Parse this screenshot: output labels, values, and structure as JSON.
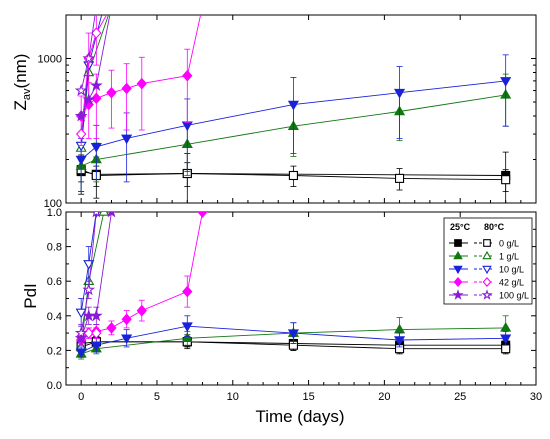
{
  "chart_data": [
    {
      "panel": "top",
      "type": "line",
      "ylabel_main": "Z",
      "ylabel_sub": "av",
      "ylabel_unit": "(nm)",
      "yscale": "log",
      "ylim": [
        100,
        2000
      ],
      "yticks": [
        100,
        1000
      ],
      "xlim": [
        -1,
        30
      ],
      "series": [
        {
          "key": "c0_25",
          "x": [
            0,
            1,
            7,
            28
          ],
          "y": [
            165,
            158,
            160,
            155
          ],
          "err": [
            50,
            50,
            60,
            70
          ]
        },
        {
          "key": "c0_80",
          "x": [
            0,
            1,
            7,
            14,
            21,
            28
          ],
          "y": [
            170,
            155,
            160,
            155,
            148,
            145
          ],
          "err": [
            30,
            25,
            30,
            25,
            25,
            25
          ]
        },
        {
          "key": "c1_25",
          "x": [
            0,
            1,
            7,
            14,
            21,
            28
          ],
          "y": [
            180,
            200,
            255,
            340,
            430,
            560
          ],
          "err": [
            60,
            60,
            100,
            130,
            160,
            220
          ]
        },
        {
          "key": "c1_80",
          "x": [
            0,
            0.5,
            2
          ],
          "y": [
            240,
            800,
            2300
          ],
          "err": [
            0,
            0,
            0
          ]
        },
        {
          "key": "c10_25",
          "x": [
            0,
            1,
            3,
            7,
            14,
            21,
            28
          ],
          "y": [
            200,
            245,
            280,
            345,
            480,
            580,
            700
          ],
          "err": [
            80,
            100,
            140,
            180,
            260,
            300,
            360
          ]
        },
        {
          "key": "c10_80",
          "x": [
            0,
            0.5,
            1.5
          ],
          "y": [
            250,
            900,
            2300
          ],
          "err": [
            0,
            0,
            0
          ]
        },
        {
          "key": "c42_25",
          "x": [
            0,
            0.5,
            1,
            2,
            3,
            4,
            7,
            8
          ],
          "y": [
            400,
            480,
            530,
            580,
            620,
            670,
            760,
            2300
          ],
          "err": [
            150,
            200,
            250,
            250,
            300,
            350,
            400,
            0
          ]
        },
        {
          "key": "c42_80",
          "x": [
            0,
            0.5,
            1,
            2
          ],
          "y": [
            300,
            1000,
            1500,
            2300
          ],
          "err": [
            0,
            500,
            600,
            0
          ]
        },
        {
          "key": "c100_25",
          "x": [
            0,
            0.5,
            1,
            2
          ],
          "y": [
            400,
            520,
            650,
            2300
          ],
          "err": [
            0,
            0,
            0,
            0
          ]
        },
        {
          "key": "c100_80",
          "x": [
            0,
            0.5,
            1
          ],
          "y": [
            600,
            1000,
            2300
          ],
          "err": [
            0,
            0,
            0
          ]
        }
      ]
    },
    {
      "panel": "bottom",
      "type": "line",
      "ylabel": "PdI",
      "ylim": [
        0.0,
        1.0
      ],
      "yticks": [
        0.0,
        0.2,
        0.4,
        0.6,
        0.8,
        1.0
      ],
      "xlim": [
        -1,
        30
      ],
      "xticks": [
        0,
        5,
        10,
        15,
        20,
        25,
        30
      ],
      "xlabel": "Time (days)",
      "series": [
        {
          "key": "c0_25",
          "x": [
            0,
            1,
            7,
            14,
            21,
            28
          ],
          "y": [
            0.24,
            0.25,
            0.25,
            0.24,
            0.23,
            0.23
          ],
          "err": [
            0.04,
            0.03,
            0.04,
            0.04,
            0.04,
            0.04
          ]
        },
        {
          "key": "c0_80",
          "x": [
            0,
            1,
            7,
            14,
            21,
            28
          ],
          "y": [
            0.22,
            0.25,
            0.25,
            0.23,
            0.21,
            0.21
          ],
          "err": [
            0.03,
            0.03,
            0.03,
            0.03,
            0.03,
            0.03
          ]
        },
        {
          "key": "c1_25",
          "x": [
            0,
            1,
            7,
            14,
            21,
            28
          ],
          "y": [
            0.18,
            0.21,
            0.27,
            0.3,
            0.32,
            0.33
          ],
          "err": [
            0.03,
            0.03,
            0.04,
            0.06,
            0.07,
            0.07
          ]
        },
        {
          "key": "c1_80",
          "x": [
            0,
            0.5,
            1.5
          ],
          "y": [
            0.22,
            0.6,
            1.0
          ],
          "err": [
            0,
            0,
            0
          ]
        },
        {
          "key": "c10_25",
          "x": [
            0,
            1,
            3,
            7,
            14,
            21,
            28
          ],
          "y": [
            0.19,
            0.23,
            0.27,
            0.34,
            0.3,
            0.26,
            0.27
          ],
          "err": [
            0.03,
            0.04,
            0.05,
            0.06,
            0.06,
            0.04,
            0.04
          ]
        },
        {
          "key": "c10_80",
          "x": [
            0,
            0.5,
            1
          ],
          "y": [
            0.42,
            0.7,
            1.0
          ],
          "err": [
            0.08,
            0.1,
            0
          ]
        },
        {
          "key": "c42_25",
          "x": [
            0,
            0.5,
            1,
            2,
            3,
            4,
            7,
            8
          ],
          "y": [
            0.26,
            0.3,
            0.31,
            0.33,
            0.38,
            0.43,
            0.54,
            1.0
          ],
          "err": [
            0.03,
            0.03,
            0.04,
            0.04,
            0.05,
            0.06,
            0.09,
            0
          ]
        },
        {
          "key": "c42_80",
          "x": [
            0,
            0.5,
            1
          ],
          "y": [
            0.28,
            0.3,
            0.3
          ],
          "err": [
            0.03,
            0.03,
            0.03
          ]
        },
        {
          "key": "c100_25",
          "x": [
            0,
            0.5,
            1,
            2
          ],
          "y": [
            0.27,
            0.4,
            0.4,
            1.0
          ],
          "err": [
            0.04,
            0.05,
            0.05,
            0
          ]
        },
        {
          "key": "c100_80",
          "x": [
            0,
            0.5,
            1
          ],
          "y": [
            0.3,
            0.55,
            1.0
          ],
          "err": [
            0.05,
            0.05,
            0
          ]
        }
      ]
    }
  ],
  "legend": {
    "placement": "right",
    "header_25": "25°C",
    "header_80": "80°C",
    "entries": [
      {
        "label": "0 g/L",
        "color": "#000000",
        "marker": "square"
      },
      {
        "label": "1 g/L",
        "color": "#117711",
        "marker": "triangle-up"
      },
      {
        "label": "10 g/L",
        "color": "#1a22d9",
        "marker": "triangle-down"
      },
      {
        "label": "42 g/L",
        "color": "#ff00ff",
        "marker": "diamond"
      },
      {
        "label": "100 g/L",
        "color": "#8a1ad6",
        "marker": "star"
      }
    ]
  },
  "styles": {
    "c0_25": {
      "color": "#000000",
      "marker": "square",
      "filled": true
    },
    "c0_80": {
      "color": "#000000",
      "marker": "square",
      "filled": false
    },
    "c1_25": {
      "color": "#117711",
      "marker": "triangle-up",
      "filled": true
    },
    "c1_80": {
      "color": "#117711",
      "marker": "triangle-up",
      "filled": false
    },
    "c10_25": {
      "color": "#1a22d9",
      "marker": "triangle-down",
      "filled": true
    },
    "c10_80": {
      "color": "#1a22d9",
      "marker": "triangle-down",
      "filled": false
    },
    "c42_25": {
      "color": "#ff00ff",
      "marker": "diamond",
      "filled": true
    },
    "c42_80": {
      "color": "#ff00ff",
      "marker": "diamond",
      "filled": false
    },
    "c100_25": {
      "color": "#8a1ad6",
      "marker": "star",
      "filled": true
    },
    "c100_80": {
      "color": "#8a1ad6",
      "marker": "star",
      "filled": false
    }
  }
}
